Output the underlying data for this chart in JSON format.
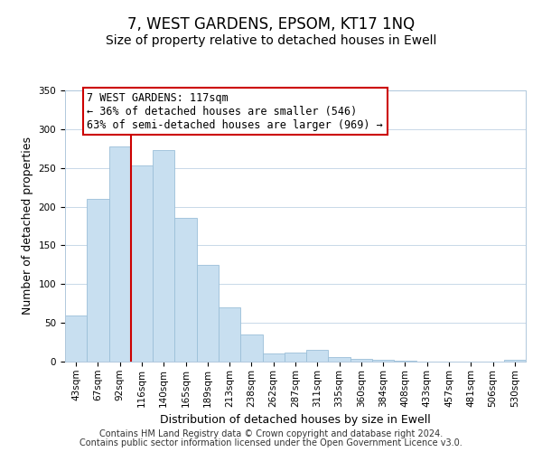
{
  "title": "7, WEST GARDENS, EPSOM, KT17 1NQ",
  "subtitle": "Size of property relative to detached houses in Ewell",
  "xlabel": "Distribution of detached houses by size in Ewell",
  "ylabel": "Number of detached properties",
  "bar_labels": [
    "43sqm",
    "67sqm",
    "92sqm",
    "116sqm",
    "140sqm",
    "165sqm",
    "189sqm",
    "213sqm",
    "238sqm",
    "262sqm",
    "287sqm",
    "311sqm",
    "335sqm",
    "360sqm",
    "384sqm",
    "408sqm",
    "433sqm",
    "457sqm",
    "481sqm",
    "506sqm",
    "530sqm"
  ],
  "bar_values": [
    60,
    210,
    278,
    253,
    273,
    185,
    125,
    70,
    35,
    10,
    12,
    15,
    6,
    3,
    2,
    1,
    0,
    0,
    0,
    0,
    2
  ],
  "bar_color": "#c8dff0",
  "bar_edge_color": "#9bbfd8",
  "vline_x": 3.5,
  "vline_color": "#cc0000",
  "annotation_title": "7 WEST GARDENS: 117sqm",
  "annotation_line1": "← 36% of detached houses are smaller (546)",
  "annotation_line2": "63% of semi-detached houses are larger (969) →",
  "annotation_box_color": "#ffffff",
  "annotation_box_edge": "#cc0000",
  "ylim": [
    0,
    350
  ],
  "yticks": [
    0,
    50,
    100,
    150,
    200,
    250,
    300,
    350
  ],
  "footer_line1": "Contains HM Land Registry data © Crown copyright and database right 2024.",
  "footer_line2": "Contains public sector information licensed under the Open Government Licence v3.0.",
  "title_fontsize": 12,
  "subtitle_fontsize": 10,
  "axis_label_fontsize": 9,
  "tick_fontsize": 7.5,
  "annotation_fontsize": 8.5,
  "footer_fontsize": 7
}
